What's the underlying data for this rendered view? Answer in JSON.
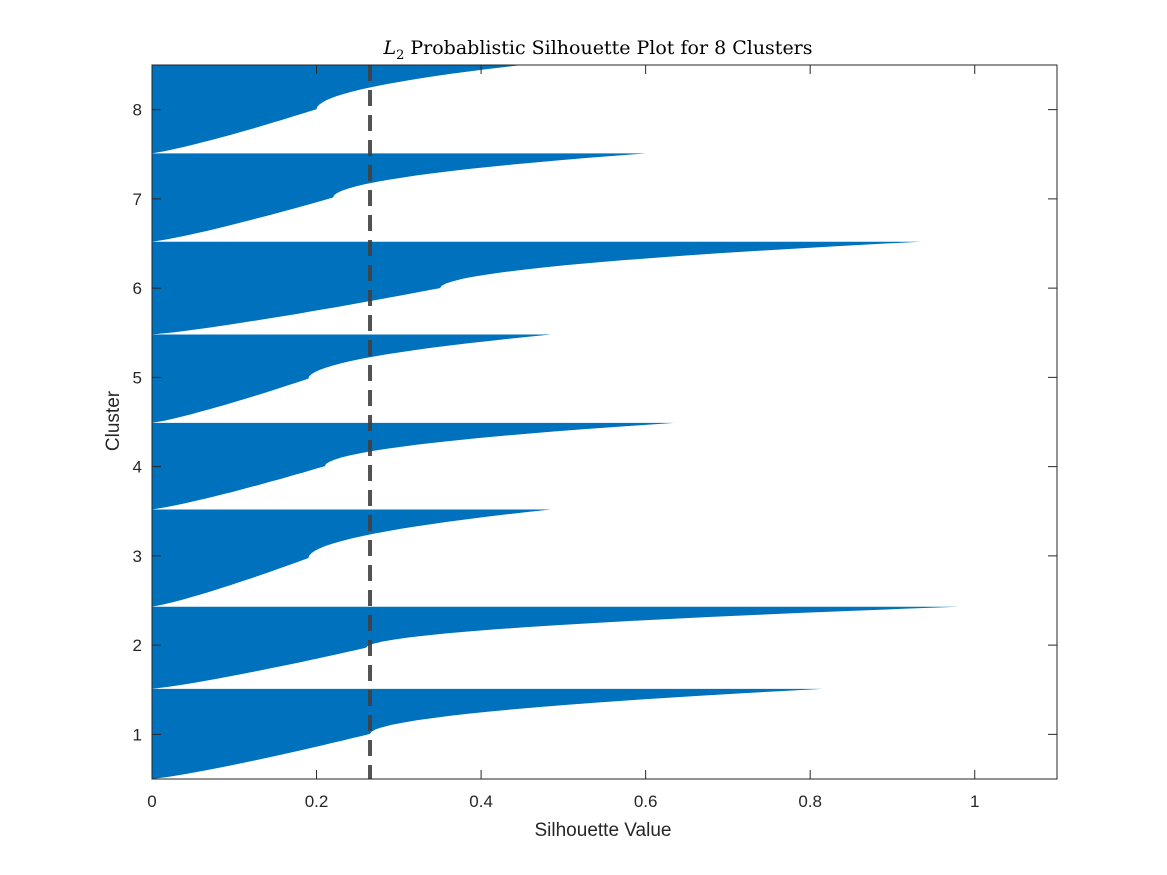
{
  "chart_data": {
    "type": "silhouette",
    "title": {
      "symbol": "L",
      "subscript": "2",
      "text": "Probablistic Silhouette Plot for 8 Clusters"
    },
    "xlabel": "Silhouette Value",
    "ylabel": "Cluster",
    "xlim": [
      0,
      1.1
    ],
    "ylim": [
      0.5,
      8.5
    ],
    "xticks": [
      0,
      0.2,
      0.4,
      0.6,
      0.8,
      1
    ],
    "xtick_labels": [
      "0",
      "0.2",
      "0.4",
      "0.6",
      "0.8",
      "1"
    ],
    "yticks": [
      1,
      2,
      3,
      4,
      5,
      6,
      7,
      8
    ],
    "ytick_labels": [
      "1",
      "2",
      "3",
      "4",
      "5",
      "6",
      "7",
      "8"
    ],
    "bar_color": "#0072BD",
    "mean_line": {
      "value": 0.265,
      "color": "#404040",
      "style": "dashed"
    },
    "clusters": [
      {
        "label": "1",
        "y_low": 0.5,
        "y_high": 1.51,
        "mid_value": 0.265,
        "max_value": 0.815
      },
      {
        "label": "2",
        "y_low": 1.51,
        "y_high": 2.43,
        "mid_value": 0.26,
        "max_value": 0.98
      },
      {
        "label": "3",
        "y_low": 2.43,
        "y_high": 3.52,
        "mid_value": 0.19,
        "max_value": 0.485
      },
      {
        "label": "4",
        "y_low": 3.52,
        "y_high": 4.49,
        "mid_value": 0.21,
        "max_value": 0.635
      },
      {
        "label": "5",
        "y_low": 4.49,
        "y_high": 5.48,
        "mid_value": 0.19,
        "max_value": 0.485
      },
      {
        "label": "6",
        "y_low": 5.48,
        "y_high": 6.52,
        "mid_value": 0.35,
        "max_value": 0.935
      },
      {
        "label": "7",
        "y_low": 6.52,
        "y_high": 7.51,
        "mid_value": 0.22,
        "max_value": 0.6
      },
      {
        "label": "8",
        "y_low": 7.51,
        "y_high": 8.5,
        "mid_value": 0.2,
        "max_value": 0.45
      }
    ]
  }
}
